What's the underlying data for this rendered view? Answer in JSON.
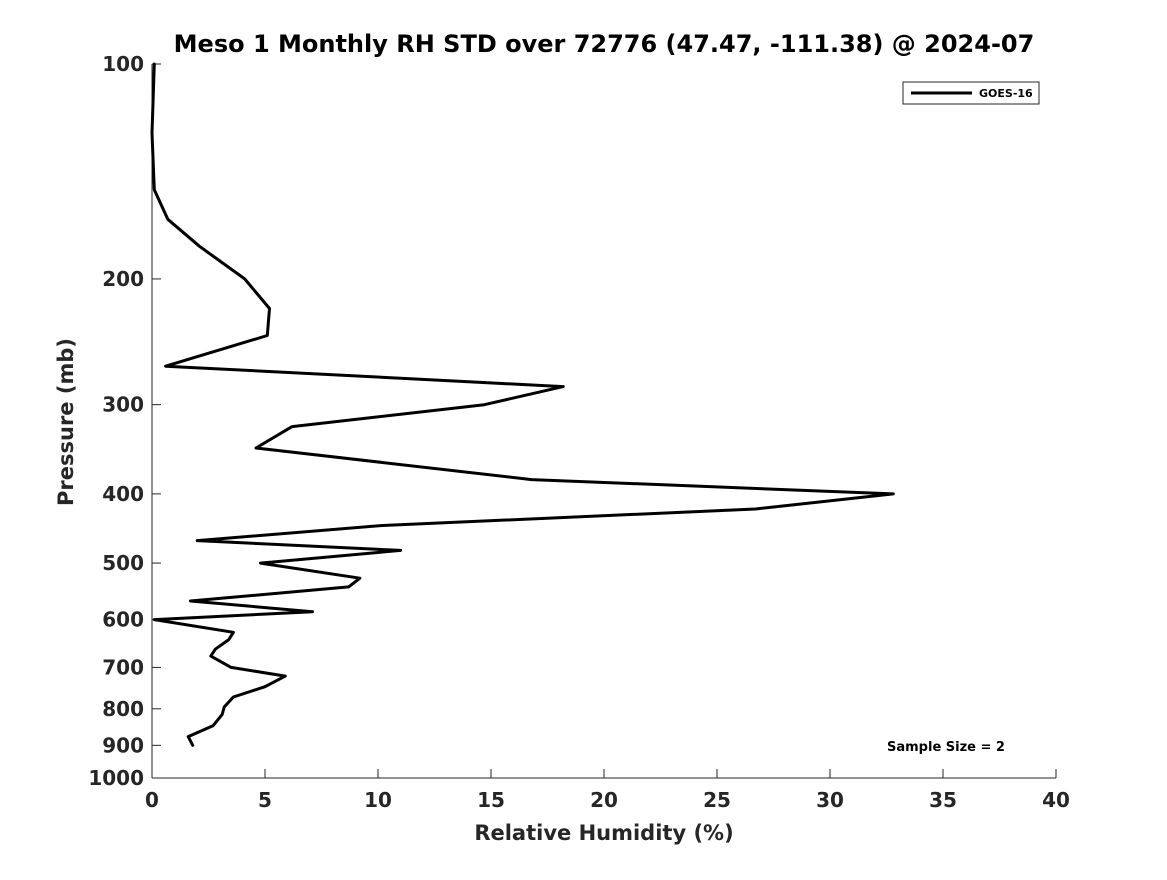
{
  "chart_data": {
    "type": "line",
    "title": "Meso 1 Monthly RH STD over 72776 (47.47, -111.38) @ 2024-07",
    "xlabel": "Relative Humidity (%)",
    "ylabel": "Pressure (mb)",
    "xlim": [
      0,
      40
    ],
    "ylim": [
      100,
      1000
    ],
    "y_scale": "log",
    "y_reversed": true,
    "x_ticks": [
      0,
      5,
      10,
      15,
      20,
      25,
      30,
      35,
      40
    ],
    "y_ticks": [
      100,
      200,
      300,
      400,
      500,
      600,
      700,
      800,
      900,
      1000
    ],
    "grid": false,
    "legend_position": "top-right",
    "annotation": "Sample Size = 2",
    "series": [
      {
        "name": "GOES-16",
        "color": "#000000",
        "points": [
          {
            "x": 0.1,
            "p": 100
          },
          {
            "x": 0.0,
            "p": 125
          },
          {
            "x": 0.1,
            "p": 150
          },
          {
            "x": 0.7,
            "p": 165
          },
          {
            "x": 2.1,
            "p": 180
          },
          {
            "x": 4.1,
            "p": 200
          },
          {
            "x": 5.2,
            "p": 220
          },
          {
            "x": 5.1,
            "p": 240
          },
          {
            "x": 0.6,
            "p": 265
          },
          {
            "x": 18.2,
            "p": 283
          },
          {
            "x": 14.7,
            "p": 300
          },
          {
            "x": 6.2,
            "p": 322
          },
          {
            "x": 4.6,
            "p": 345
          },
          {
            "x": 16.8,
            "p": 382
          },
          {
            "x": 32.8,
            "p": 400
          },
          {
            "x": 26.7,
            "p": 420
          },
          {
            "x": 10.2,
            "p": 443
          },
          {
            "x": 2.0,
            "p": 465
          },
          {
            "x": 11.0,
            "p": 480
          },
          {
            "x": 4.8,
            "p": 500
          },
          {
            "x": 9.2,
            "p": 525
          },
          {
            "x": 8.7,
            "p": 540
          },
          {
            "x": 1.7,
            "p": 565
          },
          {
            "x": 7.1,
            "p": 585
          },
          {
            "x": 0.1,
            "p": 600
          },
          {
            "x": 3.6,
            "p": 625
          },
          {
            "x": 3.4,
            "p": 640
          },
          {
            "x": 2.8,
            "p": 660
          },
          {
            "x": 2.6,
            "p": 675
          },
          {
            "x": 3.5,
            "p": 700
          },
          {
            "x": 5.9,
            "p": 720
          },
          {
            "x": 5.0,
            "p": 745
          },
          {
            "x": 3.6,
            "p": 770
          },
          {
            "x": 3.2,
            "p": 795
          },
          {
            "x": 3.1,
            "p": 815
          },
          {
            "x": 2.7,
            "p": 845
          },
          {
            "x": 1.6,
            "p": 875
          },
          {
            "x": 1.8,
            "p": 900
          }
        ]
      }
    ]
  }
}
